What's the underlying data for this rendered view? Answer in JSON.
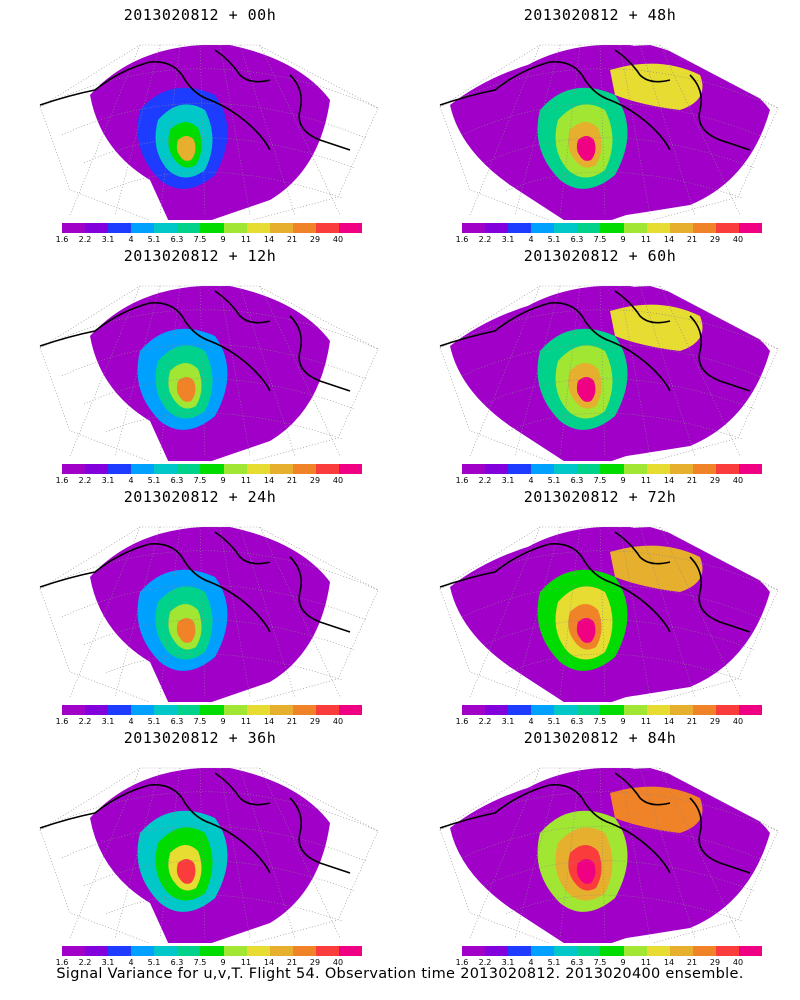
{
  "panels": [
    {
      "title": "2013020812 + 00h",
      "col": 0,
      "row": 0
    },
    {
      "title": "2013020812 + 48h",
      "col": 1,
      "row": 0
    },
    {
      "title": "2013020812 + 12h",
      "col": 0,
      "row": 1
    },
    {
      "title": "2013020812 + 60h",
      "col": 1,
      "row": 1
    },
    {
      "title": "2013020812 + 24h",
      "col": 0,
      "row": 2
    },
    {
      "title": "2013020812 + 72h",
      "col": 1,
      "row": 2
    },
    {
      "title": "2013020812 + 36h",
      "col": 0,
      "row": 3
    },
    {
      "title": "2013020812 + 84h",
      "col": 1,
      "row": 3
    }
  ],
  "legend": {
    "ticks": [
      "1.6",
      "2.2",
      "3.1",
      "4",
      "5.1",
      "6.3",
      "7.5",
      "9",
      "11",
      "14",
      "21",
      "29",
      "40"
    ],
    "colors": [
      "#a000c8",
      "#8200dc",
      "#1e3cff",
      "#00a0ff",
      "#00c8c8",
      "#00d28c",
      "#00dc00",
      "#a0e632",
      "#e6dc32",
      "#e6af2d",
      "#f08228",
      "#fa3c3c",
      "#f00082"
    ]
  },
  "caption": "Signal Variance for u,v,T. Flight 54. Observation time 2013020812. 2013020400 ensemble."
}
